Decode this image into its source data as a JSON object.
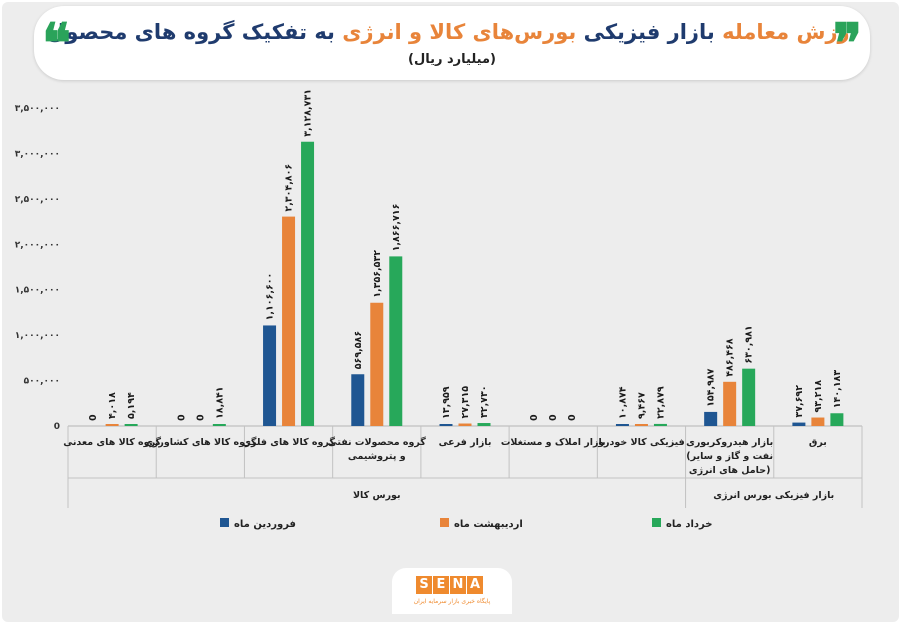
{
  "header": {
    "title_part1": "ارزش معامله",
    "title_part2": "بازار فیزیکی",
    "title_part3": "بورس‌های کالا و انرژی",
    "title_part4": "به تفکیک گروه های محصول",
    "subtitle": "(میلیارد ریال)",
    "quote_open": "❝",
    "quote_close": "❞"
  },
  "logo": {
    "letters": [
      "S",
      "E",
      "N",
      "A"
    ],
    "tagline": "پایگاه خبری بازار سرمایه ایران"
  },
  "colors": {
    "series": [
      "#1f5692",
      "#e8843a",
      "#27a85a"
    ],
    "title_accent": "#e8843a",
    "title_main": "#1f3b6e"
  },
  "chart_data": {
    "type": "bar",
    "title": "ارزش معامله بازار فیزیکی بورس‌های کالا و انرژی به تفکیک گروه های محصول",
    "ylabel": "(میلیارد ریال)",
    "ylim": [
      0,
      3500000
    ],
    "yticks": [
      0,
      500000,
      1000000,
      1500000,
      2000000,
      2500000,
      3000000,
      3500000
    ],
    "ytick_labels": [
      "0",
      "۵۰۰,۰۰۰",
      "۱,۰۰۰,۰۰۰",
      "۱,۵۰۰,۰۰۰",
      "۲,۰۰۰,۰۰۰",
      "۲,۵۰۰,۰۰۰",
      "۳,۰۰۰,۰۰۰",
      "۳,۵۰۰,۰۰۰"
    ],
    "categories": [
      [
        "گروه کالا های معدنی"
      ],
      [
        "گروه کالا های کشاورزی"
      ],
      [
        "گروه کالا های فلزی"
      ],
      [
        "گروه محصولات نفتی",
        "و پتروشیمی"
      ],
      [
        "بازار فرعی"
      ],
      [
        "بازار املاک و مستغلات"
      ],
      [
        "فیزیکی کالا خودرو"
      ],
      [
        "بازار هیدروکربوری",
        "(نفت و گاز و سایر",
        "حامل های انرژی)"
      ],
      [
        "برق"
      ]
    ],
    "group_labels": [
      {
        "label": "بورس کالا",
        "from": 0,
        "to": 6
      },
      {
        "label": "بازار فیزیکی بورس انرژی",
        "from": 7,
        "to": 8
      }
    ],
    "series": [
      {
        "name": "فروردین ماه",
        "values": [
          0,
          0,
          1106600,
          569586,
          13959,
          0,
          10874,
          154987,
          37692
        ],
        "labels": [
          "0",
          "0",
          "۱,۱۰۶,۶۰۰",
          "۵۶۹,۵۸۶",
          "۱۳,۹۵۹",
          "0",
          "۱۰,۸۷۴",
          "۱۵۴,۹۸۷",
          "۳۷,۶۹۲"
        ]
      },
      {
        "name": "اردیبهشت ماه",
        "values": [
          4018,
          0,
          2304806,
          1356532,
          27315,
          0,
          9467,
          486468,
          93218
        ],
        "labels": [
          "۴,۰۱۸",
          "0",
          "۲,۳۰۴,۸۰۶",
          "۱,۳۵۶,۵۳۲",
          "۲۷,۳۱۵",
          "0",
          "۹,۴۶۷",
          "۴۸۶,۴۶۸",
          "۹۳,۲۱۸"
        ]
      },
      {
        "name": "خرداد ماه",
        "values": [
          5194,
          18841,
          3128731,
          1866716,
          32730,
          0,
          22879,
          630981,
          140183
        ],
        "labels": [
          "۵,۱۹۴",
          "۱۸,۸۴۱",
          "۳,۱۲۸,۷۳۱",
          "۱,۸۶۶,۷۱۶",
          "۳۲,۷۳۰",
          "0",
          "۲۲,۸۷۹",
          "۶۳۰,۹۸۱",
          "۱۴۰,۱۸۳"
        ]
      }
    ],
    "legend": [
      "خرداد ماه",
      "اردیبهشت ماه",
      "فروردین ماه"
    ],
    "grid": false,
    "legend_position": "bottom"
  }
}
